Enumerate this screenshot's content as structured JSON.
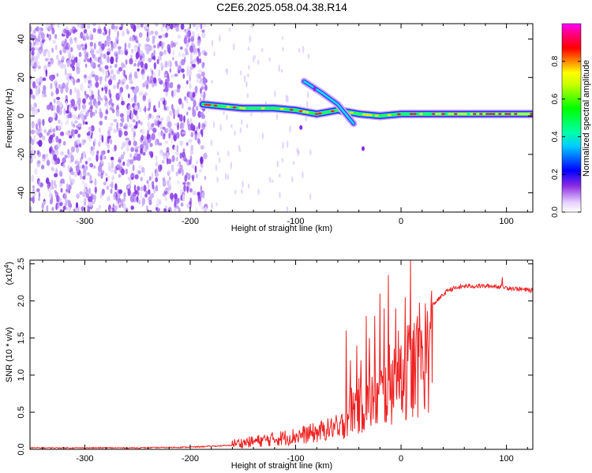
{
  "title": "C2E6.2025.058.04.38.R14",
  "chart_data": [
    {
      "type": "heatmap",
      "xlabel": "Height of straight line (km)",
      "ylabel": "Frequency (Hz)",
      "xlim": [
        -352,
        125
      ],
      "ylim": [
        -50,
        48
      ],
      "x_ticks": [
        -300,
        -200,
        -100,
        0,
        100
      ],
      "x_tick_labels": [
        "-300",
        "-200",
        "-100",
        "0",
        "100"
      ],
      "y_ticks": [
        -40,
        -20,
        0,
        20,
        40
      ],
      "y_tick_labels": [
        "-40",
        "-20",
        "0",
        "20",
        "40"
      ],
      "colorbar": {
        "label": "Normalized spectral amplitude",
        "range": [
          0,
          1
        ],
        "ticks": [
          0.0,
          0.2,
          0.4,
          0.6,
          0.8
        ],
        "tick_labels": [
          "0.0",
          "0.2",
          "0.4",
          "0.6",
          "0.8"
        ],
        "colormap": [
          "#ffffff",
          "#8a2be2",
          "#0000ff",
          "#00ffff",
          "#00ff00",
          "#ffff00",
          "#ff0000",
          "#ff00ff"
        ]
      },
      "features": {
        "noise_region_x": [
          -352,
          -185
        ],
        "main_band": [
          [
            -188,
            6
          ],
          [
            -150,
            4
          ],
          [
            -120,
            4
          ],
          [
            -100,
            3
          ],
          [
            -80,
            1
          ],
          [
            -60,
            3
          ],
          [
            -40,
            1
          ],
          [
            -20,
            0
          ],
          [
            0,
            1
          ],
          [
            50,
            1
          ],
          [
            125,
            1
          ]
        ],
        "secondary_track": [
          [
            -92,
            18
          ],
          [
            -75,
            12
          ],
          [
            -60,
            6
          ],
          [
            -45,
            -4
          ]
        ]
      }
    },
    {
      "type": "line",
      "xlabel": "Height of straight line (km)",
      "ylabel": "SNR (10 * v/v)",
      "y_multiplier_label": "(x10",
      "y_multiplier_exp": "4",
      "xlim": [
        -352,
        125
      ],
      "ylim": [
        0,
        2.55
      ],
      "x_ticks": [
        -300,
        -200,
        -100,
        0,
        100
      ],
      "x_tick_labels": [
        "-300",
        "-200",
        "-100",
        "0",
        "100"
      ],
      "y_ticks": [
        0.0,
        0.5,
        1.0,
        1.5,
        2.0,
        2.5
      ],
      "y_tick_labels": [
        "0.0",
        "0.5",
        "1.0",
        "1.5",
        "2.0",
        "2.5"
      ],
      "line_color": "#ee2222",
      "envelope": [
        [
          -352,
          0.02
        ],
        [
          -250,
          0.02
        ],
        [
          -200,
          0.03
        ],
        [
          -150,
          0.06
        ],
        [
          -120,
          0.1
        ],
        [
          -100,
          0.13
        ],
        [
          -80,
          0.17
        ],
        [
          -60,
          0.25
        ],
        [
          -55,
          0.5
        ],
        [
          -50,
          0.7
        ],
        [
          -40,
          0.8
        ],
        [
          -30,
          0.9
        ],
        [
          -20,
          1.0
        ],
        [
          -10,
          1.2
        ],
        [
          0,
          1.4
        ],
        [
          10,
          1.5
        ],
        [
          20,
          1.7
        ],
        [
          30,
          1.95
        ],
        [
          45,
          2.15
        ],
        [
          60,
          2.2
        ],
        [
          90,
          2.2
        ],
        [
          100,
          2.18
        ],
        [
          125,
          2.14
        ]
      ],
      "peaks": [
        [
          -52,
          1.6
        ],
        [
          -48,
          1.2
        ],
        [
          -42,
          1.4
        ],
        [
          -38,
          1.2
        ],
        [
          -33,
          1.8
        ],
        [
          -30,
          1.5
        ],
        [
          -25,
          1.8
        ],
        [
          -20,
          2.1
        ],
        [
          -16,
          1.9
        ],
        [
          -12,
          2.35
        ],
        [
          -8,
          1.2
        ],
        [
          -5,
          1.9
        ],
        [
          0,
          1.4
        ],
        [
          4,
          2.05
        ],
        [
          9,
          2.55
        ],
        [
          12,
          0.55
        ],
        [
          15,
          1.7
        ],
        [
          18,
          1.6
        ],
        [
          96,
          2.32
        ]
      ]
    }
  ]
}
